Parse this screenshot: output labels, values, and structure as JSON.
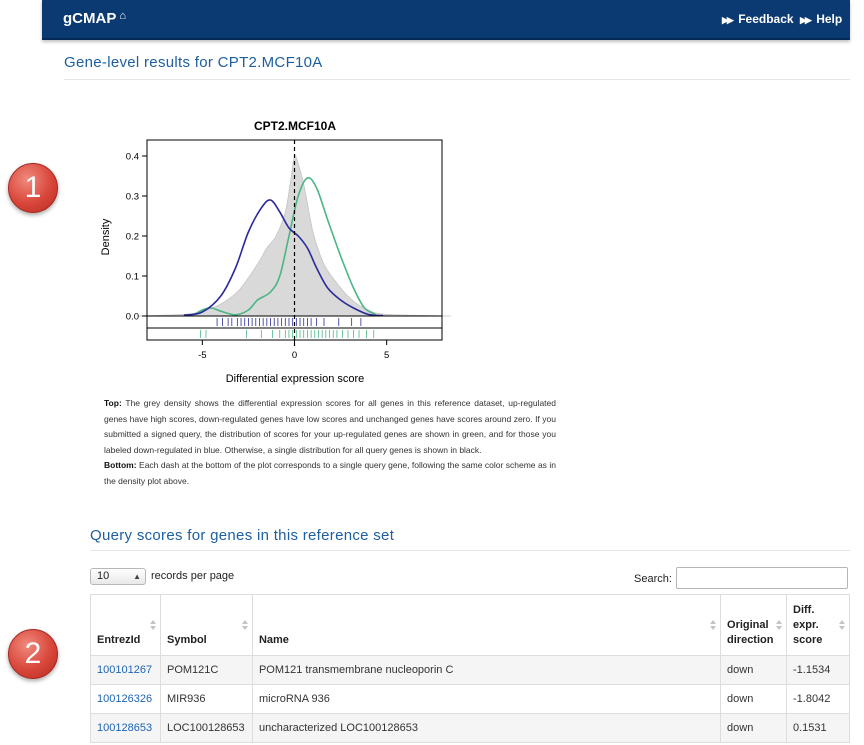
{
  "navbar": {
    "brand": "gCMAP",
    "links": [
      {
        "label": "Feedback",
        "icon": "double-chevron-right-icon"
      },
      {
        "label": "Help",
        "icon": "double-chevron-right-icon"
      }
    ]
  },
  "page": {
    "title": "Gene-level results for CPT2.MCF10A"
  },
  "badges": [
    "1",
    "2"
  ],
  "chart_data": {
    "type": "area",
    "title": "CPT2.MCF10A",
    "xlabel": "Differential expression score",
    "ylabel": "Density",
    "xlim": [
      -8,
      8
    ],
    "ylim": [
      0,
      0.44
    ],
    "xticks": [
      "-5",
      "0",
      "5"
    ],
    "yticks": [
      "0.0",
      "0.1",
      "0.2",
      "0.3",
      "0.4"
    ],
    "colors": {
      "grey": "#d9d9d9",
      "up": "#4bb585",
      "down": "#2b2a9c"
    },
    "series": [
      {
        "name": "all genes",
        "color": "#d9d9d9",
        "points": [
          [
            -8.5,
            0
          ],
          [
            -6,
            0.004
          ],
          [
            -5,
            0.012
          ],
          [
            -4,
            0.03
          ],
          [
            -3,
            0.065
          ],
          [
            -2,
            0.13
          ],
          [
            -1.5,
            0.17
          ],
          [
            -1,
            0.2
          ],
          [
            -0.5,
            0.26
          ],
          [
            -0.2,
            0.34
          ],
          [
            0,
            0.4
          ],
          [
            0.2,
            0.38
          ],
          [
            0.5,
            0.33
          ],
          [
            1,
            0.21
          ],
          [
            1.5,
            0.14
          ],
          [
            2,
            0.1
          ],
          [
            3,
            0.045
          ],
          [
            4,
            0.015
          ],
          [
            5,
            0.004
          ],
          [
            8.5,
            0
          ]
        ]
      },
      {
        "name": "up",
        "color": "#4bb585",
        "points": [
          [
            -5.5,
            0.002
          ],
          [
            -5,
            0.015
          ],
          [
            -4.5,
            0.02
          ],
          [
            -4,
            0.012
          ],
          [
            -3.2,
            0.003
          ],
          [
            -2.5,
            0.015
          ],
          [
            -2,
            0.04
          ],
          [
            -1.3,
            0.06
          ],
          [
            -0.8,
            0.1
          ],
          [
            -0.3,
            0.2
          ],
          [
            0.2,
            0.3
          ],
          [
            0.7,
            0.345
          ],
          [
            1.2,
            0.32
          ],
          [
            1.8,
            0.24
          ],
          [
            2.5,
            0.15
          ],
          [
            3.2,
            0.07
          ],
          [
            3.8,
            0.02
          ],
          [
            4.4,
            0.004
          ]
        ]
      },
      {
        "name": "down",
        "color": "#2b2a9c",
        "points": [
          [
            -6,
            0.002
          ],
          [
            -5,
            0.01
          ],
          [
            -4,
            0.05
          ],
          [
            -3.2,
            0.12
          ],
          [
            -2.5,
            0.21
          ],
          [
            -1.8,
            0.27
          ],
          [
            -1.3,
            0.29
          ],
          [
            -0.8,
            0.26
          ],
          [
            -0.3,
            0.22
          ],
          [
            0.2,
            0.2
          ],
          [
            0.7,
            0.17
          ],
          [
            1.2,
            0.12
          ],
          [
            1.8,
            0.07
          ],
          [
            2.5,
            0.04
          ],
          [
            3.2,
            0.02
          ],
          [
            4,
            0.004
          ],
          [
            4.8,
            0.001
          ]
        ]
      }
    ],
    "rug": {
      "down": [
        -4.2,
        -3.9,
        -3.6,
        -3.4,
        -3.1,
        -2.9,
        -2.7,
        -2.5,
        -2.3,
        -2.1,
        -1.9,
        -1.7,
        -1.5,
        -1.3,
        -1.1,
        -0.9,
        -0.7,
        -0.5,
        -0.3,
        -0.1,
        0.1,
        0.3,
        0.5,
        0.7,
        0.9,
        1.2,
        1.6,
        2.4,
        3.1,
        3.6
      ],
      "up": [
        -5.1,
        -4.8,
        -2.6,
        -1.8,
        -1.2,
        -0.8,
        -0.5,
        -0.3,
        -0.1,
        0.1,
        0.3,
        0.5,
        0.7,
        0.9,
        1.1,
        1.3,
        1.5,
        1.7,
        1.9,
        2.1,
        2.3,
        2.6,
        2.9,
        3.2,
        3.5,
        3.9,
        4.3
      ]
    }
  },
  "caption": {
    "top_label": "Top:",
    "top_text": "The grey density shows the differential expression scores for all genes in this reference dataset, up-regulated genes have high scores, down-regulated genes have low scores and unchanged genes have scores around zero. If you submitted a signed query, the distribution of scores for your up-regulated genes are shown in green, and for those you labeled down-regulated in blue. Otherwise, a single distribution for all query genes is shown in black.",
    "bottom_label": "Bottom:",
    "bottom_text": "Each dash at the bottom of the plot corresponds to a single query gene, following the same color scheme as in the density plot above."
  },
  "section": {
    "title": "Query scores for genes in this reference set"
  },
  "table_controls": {
    "page_length": "10",
    "records_label": "records per page",
    "search_label": "Search:",
    "search_value": ""
  },
  "table": {
    "columns": [
      "EntrezId",
      "Symbol",
      "Name",
      "Original direction",
      "Diff. expr. score"
    ],
    "rows": [
      {
        "entrez": "100101267",
        "symbol": "POM121C",
        "name": "POM121 transmembrane nucleoporin C",
        "direction": "down",
        "score": "-1.1534"
      },
      {
        "entrez": "100126326",
        "symbol": "MIR936",
        "name": "microRNA 936",
        "direction": "down",
        "score": "-1.8042"
      },
      {
        "entrez": "100128653",
        "symbol": "LOC100128653",
        "name": "uncharacterized LOC100128653",
        "direction": "down",
        "score": "0.1531"
      }
    ]
  }
}
